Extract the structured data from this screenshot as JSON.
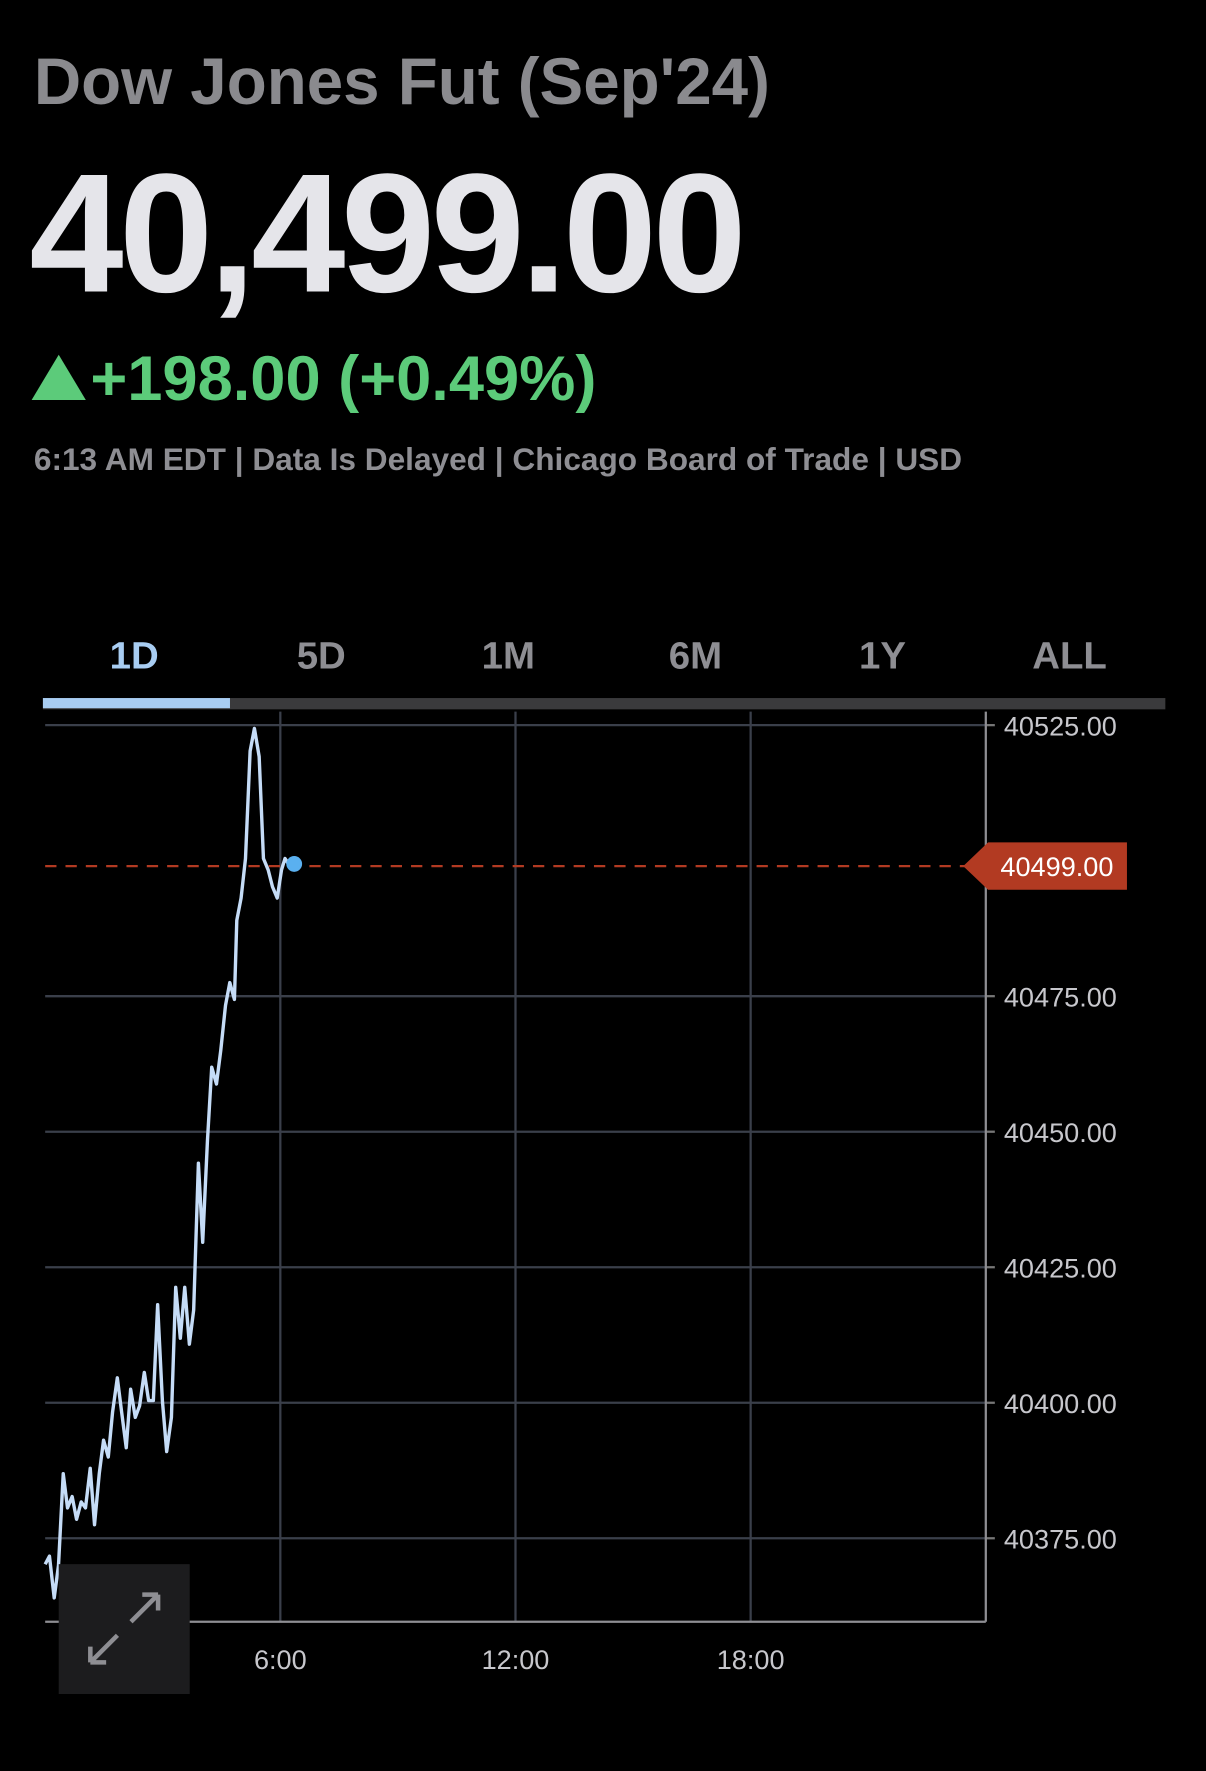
{
  "header": {
    "title": "Dow Jones Fut (Sep'24)",
    "price": "40,499.00",
    "change": "+198.00 (+0.49%)",
    "meta": "6:13 AM EDT | Data Is Delayed | Chicago Board of Trade | USD"
  },
  "tabs": [
    "1D",
    "5D",
    "1M",
    "6M",
    "1Y",
    "ALL"
  ],
  "selected_tab": "1D",
  "chart_data": {
    "type": "line",
    "color": "#c5dcf7",
    "x": [
      0,
      0.11,
      0.23,
      0.34,
      0.46,
      0.57,
      0.69,
      0.8,
      0.92,
      1.03,
      1.15,
      1.26,
      1.38,
      1.49,
      1.61,
      1.72,
      1.84,
      1.95,
      2.07,
      2.18,
      2.3,
      2.41,
      2.53,
      2.64,
      2.76,
      2.87,
      2.99,
      3.1,
      3.22,
      3.33,
      3.45,
      3.56,
      3.68,
      3.79,
      3.91,
      4.02,
      4.14,
      4.25,
      4.37,
      4.48,
      4.6,
      4.71,
      4.83,
      4.89,
      5.0,
      5.11,
      5.23,
      5.34,
      5.46,
      5.57,
      5.69,
      5.8,
      5.92,
      6.03,
      6.12,
      6.21
    ],
    "values": [
      40370.2,
      40371.7,
      40364,
      40370,
      40386.9,
      40380.6,
      40382.7,
      40378.5,
      40381.7,
      40380.6,
      40387.9,
      40377.5,
      40386.9,
      40393.1,
      40390,
      40398.3,
      40404.6,
      40398.3,
      40391.7,
      40402.5,
      40397.3,
      40399.4,
      40405.6,
      40400.4,
      40400.4,
      40418.1,
      40400.4,
      40391,
      40397.3,
      40421.3,
      40411.9,
      40421.3,
      40410.8,
      40417.1,
      40444.2,
      40429.6,
      40448.3,
      40461.9,
      40458.8,
      40465,
      40473.3,
      40477.5,
      40474.4,
      40489,
      40493.1,
      40500.4,
      40520.2,
      40524.4,
      40519.2,
      40500.4,
      40498.3,
      40495.2,
      40493.1,
      40498.3,
      40500.4,
      40499.4
    ],
    "xlim": [
      0,
      24
    ],
    "xticks": [
      {
        "value": 6,
        "label": "6:00"
      },
      {
        "value": 12,
        "label": "12:00"
      },
      {
        "value": 18,
        "label": "18:00"
      }
    ],
    "ylim": [
      40359.6,
      40527.5
    ],
    "yticks": [
      {
        "value": 40375,
        "label": "40375.00"
      },
      {
        "value": 40400,
        "label": "40400.00"
      },
      {
        "value": 40425,
        "label": "40425.00"
      },
      {
        "value": 40450,
        "label": "40450.00"
      },
      {
        "value": 40475,
        "label": "40475.00"
      },
      {
        "value": 40525,
        "label": "40525.00"
      }
    ],
    "grid": true,
    "current": {
      "value": 40499,
      "label": "40499.00"
    }
  }
}
